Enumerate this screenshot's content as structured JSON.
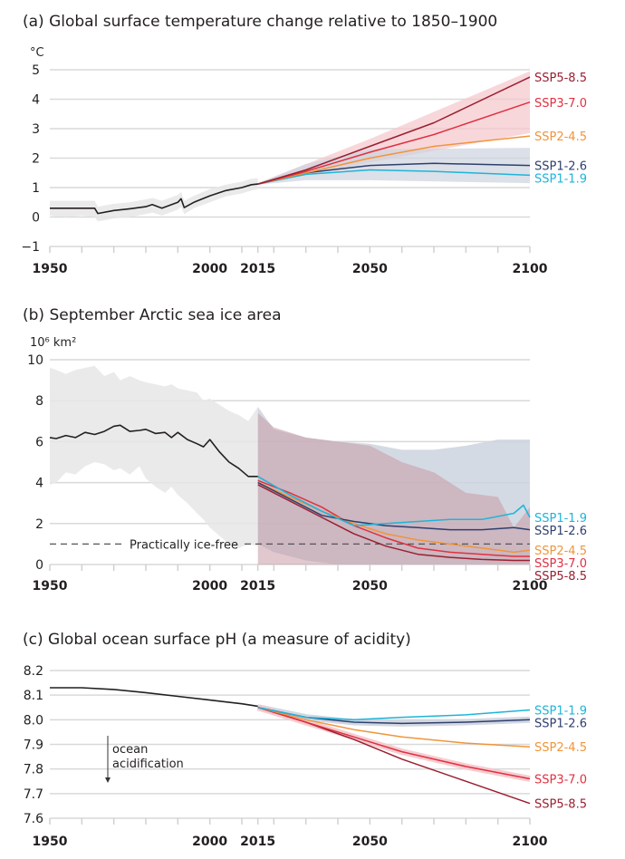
{
  "colors": {
    "historical": "#231f20",
    "historical_band": "#e6e6e6",
    "ssp119": "#1eb4d9",
    "ssp126": "#2e3f6e",
    "ssp245": "#f0953a",
    "ssp370": "#e03140",
    "ssp585": "#992030",
    "band_high": "#f5c6cc",
    "band_low": "#cdd3de"
  },
  "chart_data": [
    {
      "id": "a",
      "type": "line",
      "title": "(a) Global surface temperature change relative to 1850–1900",
      "ylabel": "°C",
      "xlabel": "",
      "xlim": [
        1950,
        2100
      ],
      "ylim": [
        -1,
        5
      ],
      "yticks": [
        "5",
        "4",
        "3",
        "2",
        "1",
        "0",
        "−1"
      ],
      "ytick_values": [
        5,
        4,
        3,
        2,
        1,
        0,
        -1
      ],
      "xticks": [
        "1950",
        "2000",
        "2015",
        "2050",
        "2100"
      ],
      "xtick_values": [
        1950,
        2000,
        2015,
        2050,
        2100
      ],
      "grid": true,
      "historical": {
        "name": "Historical",
        "x": [
          1950,
          1955,
          1960,
          1964,
          1965,
          1970,
          1975,
          1980,
          1982,
          1985,
          1990,
          1991,
          1992,
          1995,
          2000,
          2005,
          2010,
          2013,
          2015
        ],
        "y": [
          0.3,
          0.3,
          0.3,
          0.3,
          0.12,
          0.22,
          0.28,
          0.35,
          0.42,
          0.3,
          0.5,
          0.62,
          0.32,
          0.5,
          0.72,
          0.9,
          1.0,
          1.1,
          1.12
        ],
        "band_low": [
          0.05,
          0.0,
          0.05,
          0.0,
          -0.15,
          -0.05,
          0.0,
          0.1,
          0.15,
          0.05,
          0.25,
          0.35,
          0.1,
          0.3,
          0.5,
          0.7,
          0.8,
          0.9,
          0.95
        ],
        "band_high": [
          0.55,
          0.55,
          0.55,
          0.55,
          0.35,
          0.45,
          0.5,
          0.6,
          0.65,
          0.55,
          0.75,
          0.85,
          0.55,
          0.72,
          0.95,
          1.1,
          1.2,
          1.3,
          1.32
        ]
      },
      "series": [
        {
          "name": "SSP5-8.5",
          "key": "ssp585",
          "x": [
            2015,
            2030,
            2050,
            2070,
            2100
          ],
          "y": [
            1.12,
            1.6,
            2.4,
            3.2,
            4.75
          ]
        },
        {
          "name": "SSP3-7.0",
          "key": "ssp370",
          "x": [
            2015,
            2030,
            2050,
            2070,
            2100
          ],
          "y": [
            1.12,
            1.55,
            2.2,
            2.8,
            3.9
          ]
        },
        {
          "name": "SSP2-4.5",
          "key": "ssp245",
          "x": [
            2015,
            2030,
            2050,
            2070,
            2100
          ],
          "y": [
            1.12,
            1.5,
            2.0,
            2.4,
            2.75
          ]
        },
        {
          "name": "SSP1-2.6",
          "key": "ssp126",
          "x": [
            2015,
            2030,
            2050,
            2070,
            2100
          ],
          "y": [
            1.12,
            1.5,
            1.75,
            1.82,
            1.75
          ]
        },
        {
          "name": "SSP1-1.9",
          "key": "ssp119",
          "x": [
            2015,
            2030,
            2050,
            2070,
            2100
          ],
          "y": [
            1.12,
            1.45,
            1.6,
            1.55,
            1.42
          ]
        }
      ],
      "bands": [
        {
          "name": "SSP5-8.5/SSP3-7.0 range",
          "key": "band_high",
          "x": [
            2015,
            2050,
            2100
          ],
          "low": [
            1.1,
            1.85,
            2.85
          ],
          "high": [
            1.15,
            2.65,
            4.95
          ]
        },
        {
          "name": "SSP1-2.6 range",
          "key": "band_low",
          "x": [
            2015,
            2030,
            2050,
            2100
          ],
          "low": [
            1.1,
            1.25,
            1.25,
            1.15
          ],
          "high": [
            1.15,
            1.8,
            2.3,
            2.35
          ]
        }
      ]
    },
    {
      "id": "b",
      "type": "line",
      "title": "(b) September Arctic sea ice area",
      "ylabel": "10⁶ km²",
      "xlabel": "",
      "xlim": [
        1950,
        2100
      ],
      "ylim": [
        0,
        10
      ],
      "yticks": [
        "10",
        "8",
        "6",
        "4",
        "2",
        "0"
      ],
      "ytick_values": [
        10,
        8,
        6,
        4,
        2,
        0
      ],
      "xticks": [
        "1950",
        "2000",
        "2015",
        "2050",
        "2100"
      ],
      "xtick_values": [
        1950,
        2000,
        2015,
        2050,
        2100
      ],
      "grid": true,
      "threshold": {
        "label": "Practically ice-free",
        "value": 1
      },
      "historical": {
        "name": "Historical",
        "x": [
          1950,
          1952,
          1955,
          1958,
          1961,
          1964,
          1967,
          1970,
          1972,
          1975,
          1978,
          1980,
          1983,
          1986,
          1988,
          1990,
          1993,
          1996,
          1998,
          2000,
          2003,
          2006,
          2009,
          2012,
          2015
        ],
        "y": [
          6.2,
          6.15,
          6.3,
          6.2,
          6.45,
          6.35,
          6.5,
          6.75,
          6.8,
          6.5,
          6.55,
          6.6,
          6.4,
          6.45,
          6.2,
          6.45,
          6.1,
          5.9,
          5.75,
          6.1,
          5.5,
          5.0,
          4.7,
          4.3,
          4.3
        ],
        "band_low": [
          3.9,
          4.0,
          4.5,
          4.4,
          4.8,
          5.0,
          4.9,
          4.6,
          4.7,
          4.4,
          4.8,
          4.2,
          3.8,
          3.5,
          3.8,
          3.4,
          3.0,
          2.5,
          2.2,
          1.8,
          1.4,
          1.0,
          0.8,
          1.0,
          0.9
        ],
        "band_high": [
          9.6,
          9.5,
          9.3,
          9.5,
          9.6,
          9.7,
          9.2,
          9.4,
          9.0,
          9.2,
          9.0,
          8.9,
          8.8,
          8.7,
          8.8,
          8.6,
          8.5,
          8.4,
          8.0,
          8.1,
          7.8,
          7.5,
          7.3,
          7.0,
          7.7
        ]
      },
      "series": [
        {
          "name": "SSP1-1.9",
          "key": "ssp119",
          "x": [
            2015,
            2025,
            2035,
            2045,
            2055,
            2065,
            2075,
            2085,
            2095,
            2098,
            2100
          ],
          "y": [
            4.3,
            3.4,
            2.6,
            1.9,
            2.0,
            2.1,
            2.2,
            2.2,
            2.5,
            2.9,
            2.3
          ]
        },
        {
          "name": "SSP1-2.6",
          "key": "ssp126",
          "x": [
            2015,
            2025,
            2035,
            2045,
            2055,
            2065,
            2075,
            2085,
            2095,
            2100
          ],
          "y": [
            4.0,
            3.2,
            2.4,
            2.1,
            1.9,
            1.8,
            1.7,
            1.7,
            1.8,
            1.7
          ]
        },
        {
          "name": "SSP2-4.5",
          "key": "ssp245",
          "x": [
            2015,
            2025,
            2035,
            2045,
            2055,
            2065,
            2075,
            2085,
            2095,
            2100
          ],
          "y": [
            4.0,
            3.3,
            2.6,
            2.0,
            1.5,
            1.2,
            1.0,
            0.8,
            0.6,
            0.7
          ]
        },
        {
          "name": "SSP3-7.0",
          "key": "ssp370",
          "x": [
            2015,
            2025,
            2035,
            2045,
            2055,
            2065,
            2075,
            2085,
            2095,
            2100
          ],
          "y": [
            4.1,
            3.5,
            2.8,
            1.9,
            1.3,
            0.8,
            0.6,
            0.5,
            0.4,
            0.4
          ]
        },
        {
          "name": "SSP5-8.5",
          "key": "ssp585",
          "x": [
            2015,
            2025,
            2035,
            2045,
            2055,
            2065,
            2075,
            2085,
            2095,
            2100
          ],
          "y": [
            3.9,
            3.1,
            2.3,
            1.5,
            0.9,
            0.5,
            0.35,
            0.25,
            0.2,
            0.2
          ]
        }
      ],
      "bands": [
        {
          "name": "SSP1-2.6 range",
          "key": "band_low",
          "x": [
            2015,
            2020,
            2030,
            2040,
            2050,
            2060,
            2070,
            2080,
            2090,
            2100
          ],
          "low": [
            1.0,
            0.6,
            0.2,
            0.0,
            0.0,
            0.0,
            0.0,
            0.0,
            0.0,
            0.0
          ],
          "high": [
            7.7,
            6.6,
            6.2,
            6.0,
            5.9,
            5.6,
            5.6,
            5.8,
            6.1,
            6.1
          ]
        },
        {
          "name": "SSP3-7.0 range",
          "key": "band_high",
          "x": [
            2015,
            2020,
            2030,
            2040,
            2050,
            2060,
            2070,
            2080,
            2090,
            2095,
            2100
          ],
          "low": [
            0.0,
            0.0,
            0.0,
            0.0,
            0.0,
            0.0,
            0.0,
            0.0,
            0.0,
            0.0,
            0.0
          ],
          "high": [
            7.4,
            6.7,
            6.2,
            6.0,
            5.8,
            5.0,
            4.5,
            3.5,
            3.3,
            1.8,
            2.8
          ]
        }
      ]
    },
    {
      "id": "c",
      "type": "line",
      "title": "(c) Global ocean surface pH (a measure of acidity)",
      "ylabel": "",
      "xlabel": "",
      "xlim": [
        1950,
        2100
      ],
      "ylim": [
        7.6,
        8.2
      ],
      "yticks": [
        "8.2",
        "8.1",
        "8.0",
        "7.9",
        "7.8",
        "7.7",
        "7.6"
      ],
      "ytick_values": [
        8.2,
        8.1,
        8.0,
        7.9,
        7.8,
        7.7,
        7.6
      ],
      "xticks": [
        "1950",
        "2000",
        "2015",
        "2050",
        "2100"
      ],
      "xtick_values": [
        1950,
        2000,
        2015,
        2050,
        2100
      ],
      "grid": true,
      "annotation": {
        "line1": "ocean",
        "line2": "acidification",
        "arrow": "down"
      },
      "historical": {
        "name": "Historical",
        "x": [
          1950,
          1960,
          1970,
          1980,
          1990,
          2000,
          2010,
          2015
        ],
        "y": [
          8.13,
          8.13,
          8.123,
          8.11,
          8.095,
          8.08,
          8.065,
          8.055
        ]
      },
      "series": [
        {
          "name": "SSP1-1.9",
          "key": "ssp119",
          "x": [
            2015,
            2030,
            2045,
            2060,
            2080,
            2100
          ],
          "y": [
            8.05,
            8.01,
            8.0,
            8.01,
            8.02,
            8.04
          ]
        },
        {
          "name": "SSP1-2.6",
          "key": "ssp126",
          "x": [
            2015,
            2030,
            2045,
            2060,
            2080,
            2100
          ],
          "y": [
            8.05,
            8.01,
            7.99,
            7.985,
            7.99,
            8.0
          ]
        },
        {
          "name": "SSP2-4.5",
          "key": "ssp245",
          "x": [
            2015,
            2030,
            2045,
            2060,
            2080,
            2100
          ],
          "y": [
            8.05,
            8.0,
            7.96,
            7.93,
            7.905,
            7.89
          ]
        },
        {
          "name": "SSP3-7.0",
          "key": "ssp370",
          "x": [
            2015,
            2030,
            2045,
            2060,
            2080,
            2100
          ],
          "y": [
            8.05,
            7.99,
            7.93,
            7.87,
            7.81,
            7.76
          ]
        },
        {
          "name": "SSP5-8.5",
          "key": "ssp585",
          "x": [
            2015,
            2030,
            2045,
            2060,
            2080,
            2100
          ],
          "y": [
            8.05,
            7.99,
            7.92,
            7.84,
            7.75,
            7.66
          ]
        }
      ]
    }
  ]
}
